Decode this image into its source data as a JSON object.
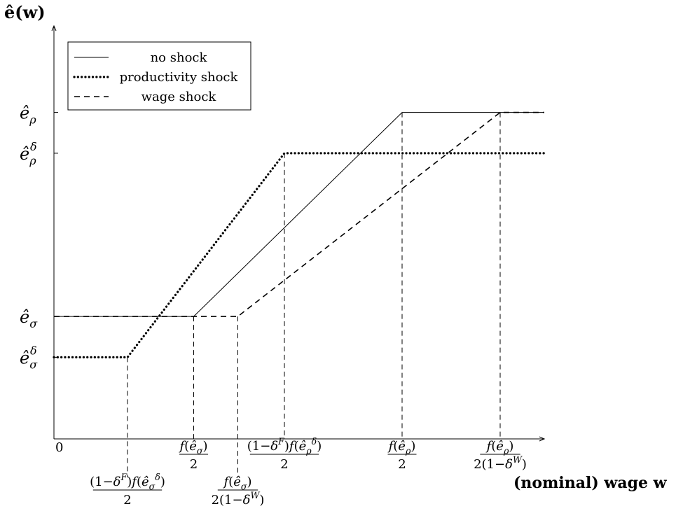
{
  "chart_data": {
    "type": "line",
    "title": "",
    "ylabel": "ê(w)",
    "xlabel": "(nominal) wage w",
    "origin_label": "0",
    "xlim": [
      0,
      1.0
    ],
    "ylim": [
      0,
      1.0
    ],
    "grid": false,
    "legend_position": "top-left",
    "levels": {
      "e_sigma_delta": 0.2,
      "e_sigma": 0.3,
      "e_rho_delta": 0.7,
      "e_rho": 0.8
    },
    "ytick_labels": [
      {
        "key": "e_rho",
        "base": "ê",
        "sub": "ρ",
        "sup": ""
      },
      {
        "key": "e_rho_delta",
        "base": "ê",
        "sub": "ρ",
        "sup": "δ"
      },
      {
        "key": "e_sigma",
        "base": "ê",
        "sub": "σ",
        "sup": ""
      },
      {
        "key": "e_sigma_delta",
        "base": "ê",
        "sub": "σ",
        "sup": "δ"
      }
    ],
    "xticks": [
      {
        "x": 0.15,
        "num": "(1−δ^F)f(ê_σ^δ)",
        "den": "2",
        "row": "low"
      },
      {
        "x": 0.285,
        "num": "f(ê_σ)",
        "den": "2",
        "row": "high"
      },
      {
        "x": 0.375,
        "num": "f(ê_σ)",
        "den": "2(1−δ^W)",
        "row": "low"
      },
      {
        "x": 0.47,
        "num": "(1−δ^F)f(ê_ρ^δ)",
        "den": "2",
        "row": "high"
      },
      {
        "x": 0.71,
        "num": "f(ê_ρ)",
        "den": "2",
        "row": "high"
      },
      {
        "x": 0.91,
        "num": "f(ê_ρ)",
        "den": "2(1−δ^W)",
        "row": "high"
      }
    ],
    "series": [
      {
        "name": "no shock",
        "style": "solid",
        "x": [
          0,
          0.285,
          0.71,
          1.0
        ],
        "y": [
          0.3,
          0.3,
          0.8,
          0.8
        ]
      },
      {
        "name": "productivity shock",
        "style": "dotted",
        "x": [
          0,
          0.15,
          0.47,
          1.0
        ],
        "y": [
          0.2,
          0.2,
          0.7,
          0.7
        ]
      },
      {
        "name": "wage shock",
        "style": "dashed",
        "x": [
          0,
          0.375,
          0.91,
          1.0
        ],
        "y": [
          0.3,
          0.3,
          0.8,
          0.8
        ]
      }
    ],
    "line_color": "#000000"
  }
}
